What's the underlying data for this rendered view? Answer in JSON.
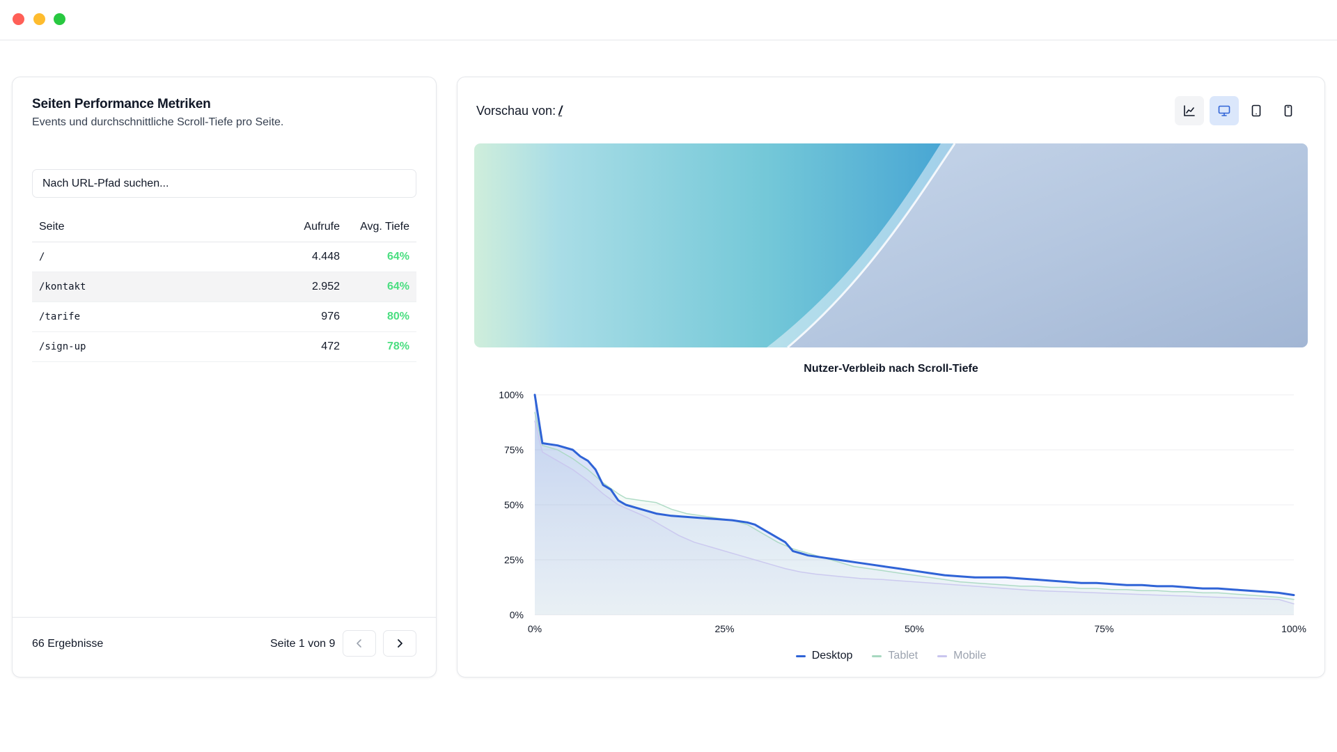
{
  "metrics": {
    "title": "Seiten Performance Metriken",
    "subtitle": "Events und durchschnittliche Scroll-Tiefe pro Seite.",
    "search_placeholder": "Nach URL-Pfad suchen...",
    "columns": {
      "page": "Seite",
      "views": "Aufrufe",
      "depth": "Avg. Tiefe"
    },
    "rows": [
      {
        "path": "/",
        "views": "4.448",
        "depth": "64%"
      },
      {
        "path": "/kontakt",
        "views": "2.952",
        "depth": "64%"
      },
      {
        "path": "/tarife",
        "views": "976",
        "depth": "80%"
      },
      {
        "path": "/sign-up",
        "views": "472",
        "depth": "78%"
      }
    ],
    "selected_row": 1,
    "results": "66 Ergebnisse",
    "page_info": "Seite 1 von 9",
    "prev_icon": "chevron-left-icon",
    "next_icon": "chevron-right-icon",
    "depth_color": "#4ade80"
  },
  "preview": {
    "label": "Vorschau von:",
    "value": "/",
    "views": [
      "chart-icon",
      "desktop-icon",
      "tablet-icon",
      "mobile-icon"
    ],
    "active_view": "desktop-icon"
  },
  "chart_data": {
    "type": "area",
    "title": "Nutzer-Verbleib nach Scroll-Tiefe",
    "xlabel": "",
    "ylabel": "",
    "xlim": [
      0,
      100
    ],
    "ylim": [
      0,
      100
    ],
    "x_ticks": [
      "0%",
      "25%",
      "50%",
      "75%",
      "100%"
    ],
    "y_ticks": [
      "0%",
      "25%",
      "50%",
      "75%",
      "100%"
    ],
    "grid": true,
    "legend": "bottom",
    "series": [
      {
        "name": "Desktop",
        "color": "#2f63d6",
        "active": true,
        "x": [
          0,
          1,
          3,
          5,
          6,
          7,
          8,
          9,
          10,
          11,
          12,
          14,
          16,
          18,
          20,
          22,
          24,
          26,
          28,
          29,
          30,
          31,
          32,
          33,
          34,
          35,
          36,
          38,
          40,
          42,
          44,
          46,
          48,
          50,
          52,
          54,
          56,
          58,
          60,
          62,
          64,
          66,
          68,
          70,
          72,
          74,
          76,
          78,
          80,
          82,
          84,
          86,
          88,
          90,
          92,
          94,
          96,
          98,
          100
        ],
        "values": [
          100,
          78,
          77,
          75,
          72,
          70,
          66,
          59,
          57,
          52,
          50,
          48,
          46,
          45,
          44.5,
          44,
          43.5,
          43,
          42,
          41,
          39,
          37,
          35,
          33,
          29,
          28,
          27,
          26,
          25,
          24,
          23,
          22,
          21,
          20,
          19,
          18,
          17.5,
          17,
          17,
          17,
          16.5,
          16,
          15.5,
          15,
          14.5,
          14.5,
          14,
          13.5,
          13.5,
          13,
          13,
          12.5,
          12,
          12,
          11.5,
          11,
          10.5,
          10,
          9
        ]
      },
      {
        "name": "Tablet",
        "color": "#a7d8c0",
        "active": false,
        "x": [
          0,
          1,
          3,
          5,
          7,
          9,
          11,
          12,
          14,
          16,
          18,
          20,
          22,
          24,
          26,
          28,
          30,
          32,
          34,
          36,
          38,
          40,
          42,
          44,
          46,
          48,
          50,
          52,
          54,
          56,
          58,
          60,
          62,
          64,
          66,
          68,
          70,
          72,
          74,
          76,
          78,
          80,
          82,
          84,
          86,
          88,
          90,
          92,
          94,
          96,
          98,
          100
        ],
        "values": [
          92,
          77,
          75,
          71,
          66,
          60,
          55,
          53,
          52,
          51,
          48,
          46,
          45,
          44,
          43,
          41,
          37,
          33,
          30,
          28,
          26,
          24,
          22,
          21,
          20,
          19,
          18,
          17,
          16,
          15,
          14.5,
          14,
          13.5,
          13,
          13,
          12.5,
          12.5,
          12,
          12,
          11.5,
          11.5,
          11,
          11,
          10.5,
          10.5,
          10,
          10,
          9.5,
          9,
          8.5,
          8,
          7
        ]
      },
      {
        "name": "Mobile",
        "color": "#c9c5ee",
        "active": false,
        "x": [
          0,
          1,
          3,
          5,
          7,
          9,
          11,
          13,
          15,
          17,
          19,
          21,
          23,
          25,
          27,
          29,
          31,
          33,
          35,
          37,
          40,
          43,
          46,
          50,
          54,
          58,
          62,
          66,
          70,
          74,
          78,
          82,
          86,
          90,
          94,
          98,
          100
        ],
        "values": [
          88,
          74,
          70,
          66,
          61,
          55,
          50,
          47,
          44,
          40,
          36,
          33,
          31,
          29,
          27,
          25,
          23,
          21,
          19.5,
          18.5,
          17.5,
          16.5,
          16,
          15,
          14,
          13,
          12,
          11,
          10.5,
          10,
          9.5,
          9,
          8.5,
          8,
          7.5,
          7,
          5
        ]
      }
    ]
  }
}
